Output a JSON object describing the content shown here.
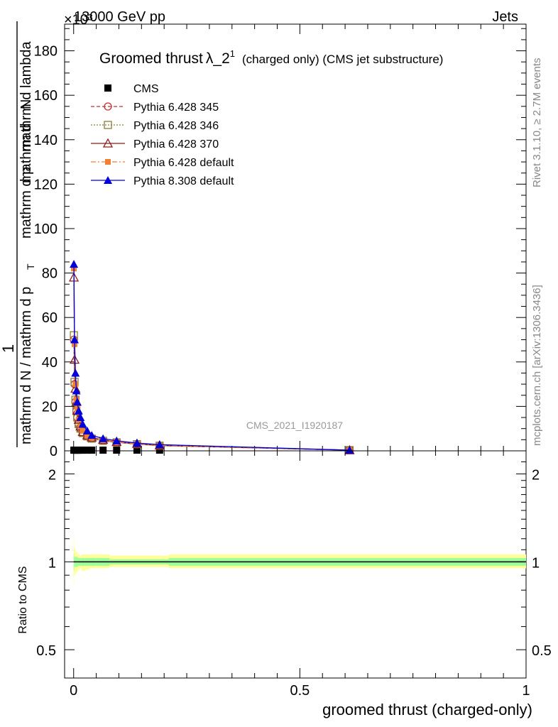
{
  "header": {
    "left": "13000 GeV pp",
    "right": "Jets",
    "exponent": "×10³"
  },
  "side_text": {
    "rivet": "Rivet 3.1.10, ≥ 2.7M events",
    "mcplots": "mcplots.cern.ch [arXiv:1306.3436]"
  },
  "watermark": "CMS_2021_I1920187",
  "legend_title": {
    "main": "Groomed thrust",
    "lambda": "λ_2",
    "sup": "1",
    "rest": "(charged only) (CMS jet substructure)"
  },
  "y_title": {
    "frac_num": "1",
    "num": "mathrm d",
    "num2": "N",
    "den_a": "mathrm d N / mathrm d p",
    "den_b": "mathrm d p",
    "den_c": "mathrm d lambda",
    "sub": "T"
  },
  "ratio_ylabel": "Ratio to CMS",
  "xlabel": "groomed thrust (charged-only)",
  "colors": {
    "cms": "#000000",
    "p345": "#c0302e",
    "p346": "#8b7b3c",
    "p370": "#8b1a1a",
    "pdef": "#f08030",
    "p8": "#0000dd",
    "band_yellow": "#ffff99",
    "band_green": "#99ff99"
  },
  "chart_data": [
    {
      "type": "line",
      "title": "Groomed thrust λ_2^1 (charged only) (CMS jet substructure)",
      "ylabel": "1 / (mathrm d N / mathrm d p_T) mathrm d^2 N / (mathrm d p_T mathrm d lambda)",
      "y_multiplier": "×10³",
      "xlim": [
        -0.02,
        1.0
      ],
      "ylim": [
        0,
        192
      ],
      "x_ticks": [
        0,
        0.5,
        1
      ],
      "x_tick_labels": [
        "0",
        "0.5",
        "1"
      ],
      "y_ticks": [
        0,
        20,
        40,
        60,
        80,
        100,
        120,
        140,
        160,
        180
      ],
      "y_tick_labels": [
        "0",
        "20",
        "40",
        "60",
        "80",
        "100",
        "120",
        "140",
        "160",
        "180"
      ],
      "legend_position": "top-left",
      "series": [
        {
          "name": "CMS",
          "marker": "square",
          "x": [
            0.0005,
            0.002,
            0.004,
            0.006,
            0.008,
            0.011,
            0.015,
            0.02,
            0.03,
            0.04,
            0.065,
            0.095,
            0.14,
            0.19,
            0.61
          ],
          "y": [
            0.3,
            0.3,
            0.3,
            0.3,
            0.3,
            0.3,
            0.3,
            0.3,
            0.3,
            0.3,
            0.3,
            0.3,
            0.3,
            0.3,
            0.3
          ]
        },
        {
          "name": "Pythia 6.428 345",
          "marker": "open-circle",
          "dash": "5,3",
          "x": [
            0.0005,
            0.002,
            0.004,
            0.006,
            0.008,
            0.011,
            0.015,
            0.02,
            0.03,
            0.04,
            0.065,
            0.095,
            0.14,
            0.19,
            0.61
          ],
          "y": [
            50,
            30,
            22,
            18,
            15,
            12,
            10,
            8,
            6.5,
            5.5,
            4.5,
            3.8,
            3.0,
            2.3,
            0.3
          ]
        },
        {
          "name": "Pythia 6.428 346",
          "marker": "open-square",
          "dash": "2,2",
          "x": [
            0.0005,
            0.002,
            0.004,
            0.006,
            0.008,
            0.011,
            0.015,
            0.02,
            0.03,
            0.04,
            0.065,
            0.095,
            0.14,
            0.19,
            0.61
          ],
          "y": [
            52,
            31,
            23,
            18,
            15,
            12,
            10,
            8,
            6.5,
            5.5,
            4.5,
            3.8,
            3.0,
            2.3,
            0.3
          ]
        },
        {
          "name": "Pythia 6.428 370",
          "marker": "open-triangle",
          "dash": "",
          "x": [
            0.0005,
            0.002,
            0.004,
            0.006,
            0.008,
            0.011,
            0.015,
            0.02,
            0.03,
            0.04,
            0.065,
            0.095,
            0.14,
            0.19,
            0.61
          ],
          "y": [
            78,
            41,
            28,
            22,
            18,
            14,
            11,
            8.5,
            7,
            6,
            5,
            4,
            3.2,
            2.5,
            0.3
          ]
        },
        {
          "name": "Pythia 6.428 default",
          "marker": "filled-square",
          "dash": "7,3,2,3",
          "x": [
            0.0005,
            0.002,
            0.004,
            0.006,
            0.008,
            0.011,
            0.015,
            0.02,
            0.03,
            0.04,
            0.065,
            0.095,
            0.14,
            0.19,
            0.61
          ],
          "y": [
            82,
            48,
            30,
            23,
            19,
            14,
            11,
            9,
            7,
            6,
            5,
            4,
            3.2,
            2.4,
            0.3
          ]
        },
        {
          "name": "Pythia 8.308 default",
          "marker": "filled-triangle",
          "dash": "",
          "x": [
            0.0005,
            0.002,
            0.004,
            0.006,
            0.008,
            0.011,
            0.015,
            0.02,
            0.03,
            0.04,
            0.065,
            0.095,
            0.14,
            0.19,
            0.61
          ],
          "y": [
            84,
            50,
            35,
            27,
            22,
            18,
            15,
            12,
            9,
            7,
            5.5,
            4.5,
            3.5,
            2.8,
            0.3
          ]
        }
      ]
    },
    {
      "type": "area",
      "ylabel": "Ratio to CMS",
      "xlabel": "groomed thrust (charged-only)",
      "xlim": [
        -0.02,
        1.0
      ],
      "ylim": [
        0.4,
        2.4
      ],
      "y_scale": "log",
      "x_ticks": [
        0,
        0.5,
        1
      ],
      "x_tick_labels": [
        "0",
        "0.5",
        "1"
      ],
      "y_ticks": [
        0.5,
        1,
        2
      ],
      "y_tick_labels": [
        "0.5",
        "1",
        "2"
      ],
      "bins": [
        0,
        0.001,
        0.003,
        0.005,
        0.007,
        0.009,
        0.013,
        0.017,
        0.025,
        0.035,
        0.05,
        0.08,
        0.11,
        0.17,
        0.21,
        1.0
      ],
      "yellow_band": {
        "lower": [
          0.83,
          0.9,
          0.91,
          0.92,
          0.92,
          0.94,
          0.95,
          0.93,
          0.94,
          0.95,
          0.95,
          0.96,
          0.96,
          0.96,
          0.95
        ],
        "upper": [
          1.22,
          1.12,
          1.1,
          1.08,
          1.08,
          1.06,
          1.05,
          1.06,
          1.06,
          1.06,
          1.06,
          1.05,
          1.05,
          1.05,
          1.06
        ]
      },
      "green_band": {
        "lower": [
          0.93,
          0.96,
          0.96,
          0.96,
          0.96,
          0.97,
          0.97,
          0.97,
          0.97,
          0.97,
          0.97,
          0.98,
          0.98,
          0.98,
          0.97
        ],
        "upper": [
          1.07,
          1.04,
          1.04,
          1.04,
          1.04,
          1.03,
          1.03,
          1.03,
          1.03,
          1.03,
          1.03,
          1.02,
          1.02,
          1.02,
          1.03
        ]
      },
      "reference_line": 1
    }
  ]
}
